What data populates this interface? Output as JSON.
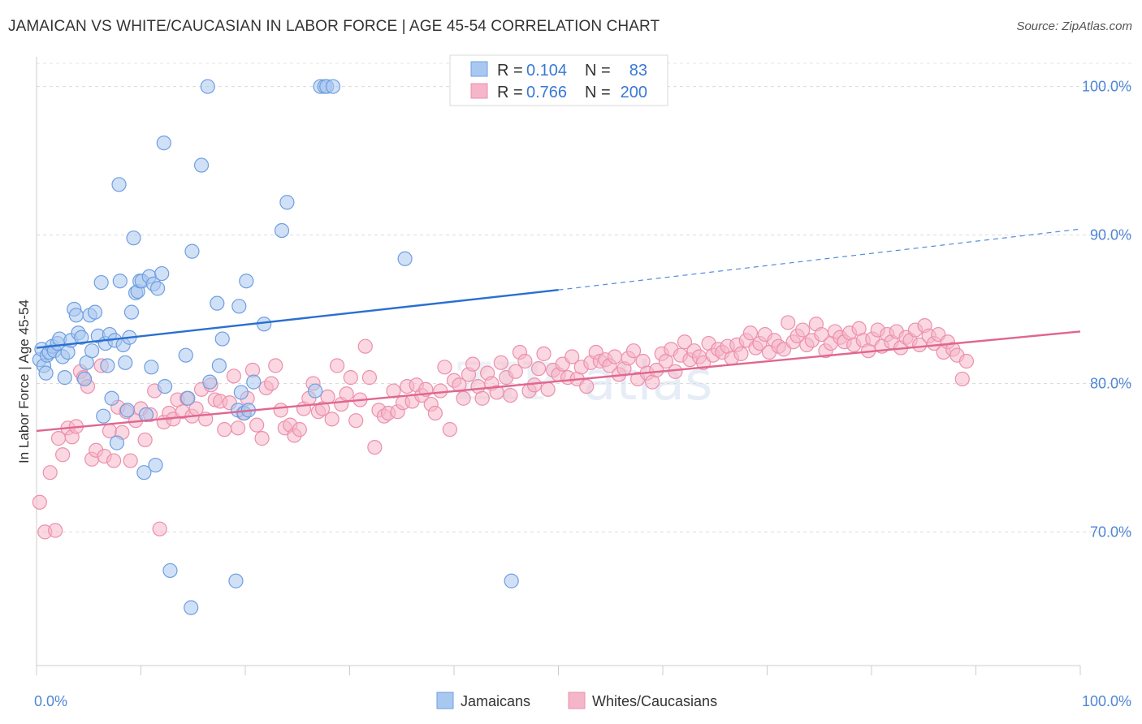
{
  "header": {
    "title": "JAMAICAN VS WHITE/CAUCASIAN IN LABOR FORCE | AGE 45-54 CORRELATION CHART",
    "source": "Source: ZipAtlas.com"
  },
  "colors": {
    "blue_fill": "#a9c8f0",
    "blue_stroke": "#6f9ee0",
    "blue_line": "#2a6fd0",
    "pink_fill": "#f5b6c9",
    "pink_stroke": "#ec8fae",
    "pink_line": "#e0668f",
    "tick_label": "#4f86d4"
  },
  "chart_data": {
    "type": "scatter",
    "title": "JAMAICAN VS WHITE/CAUCASIAN IN LABOR FORCE | AGE 45-54 CORRELATION CHART",
    "xlabel": "",
    "ylabel": "In Labor Force | Age 45-54",
    "xlim": [
      0,
      100
    ],
    "ylim": [
      61,
      102
    ],
    "x_tick_labels": [
      "0.0%",
      "100.0%"
    ],
    "y_ticks": [
      70,
      80,
      90,
      100
    ],
    "y_tick_labels": [
      "70.0%",
      "80.0%",
      "90.0%",
      "100.0%"
    ],
    "legend_position": "top-center",
    "watermark": "ZIPatlas",
    "legend": {
      "rows": [
        {
          "r_label": "R =",
          "r_value": "0.104",
          "n_label": "N =",
          "n_value": "83"
        },
        {
          "r_label": "R =",
          "r_value": "0.766",
          "n_label": "N =",
          "n_value": "200"
        }
      ]
    },
    "series": [
      {
        "name": "Jamaicans",
        "n": 83,
        "r": 0.104,
        "trend": {
          "x0": 0,
          "y0": 82.4,
          "x1": 50,
          "y1": 86.3,
          "dashed_to_x": 100,
          "dashed_to_y": 90.4
        },
        "points": [
          [
            0.3,
            81.6
          ],
          [
            0.5,
            82.3
          ],
          [
            0.7,
            81.2
          ],
          [
            0.9,
            80.7
          ],
          [
            1.0,
            81.9
          ],
          [
            1.2,
            82.1
          ],
          [
            1.5,
            82.5
          ],
          [
            1.7,
            82.2
          ],
          [
            2.0,
            82.7
          ],
          [
            2.2,
            83.0
          ],
          [
            2.5,
            81.8
          ],
          [
            2.7,
            80.4
          ],
          [
            3.0,
            82.1
          ],
          [
            3.3,
            82.9
          ],
          [
            3.6,
            85.0
          ],
          [
            3.8,
            84.6
          ],
          [
            4.0,
            83.4
          ],
          [
            4.3,
            83.1
          ],
          [
            4.6,
            80.3
          ],
          [
            4.8,
            81.4
          ],
          [
            5.1,
            84.6
          ],
          [
            5.3,
            82.2
          ],
          [
            5.6,
            84.8
          ],
          [
            5.9,
            83.2
          ],
          [
            6.2,
            86.8
          ],
          [
            6.4,
            77.8
          ],
          [
            6.6,
            82.7
          ],
          [
            6.8,
            81.2
          ],
          [
            7.0,
            83.3
          ],
          [
            7.2,
            79.0
          ],
          [
            7.5,
            82.9
          ],
          [
            7.7,
            76.0
          ],
          [
            7.9,
            93.4
          ],
          [
            8.0,
            86.9
          ],
          [
            8.3,
            82.6
          ],
          [
            8.5,
            81.4
          ],
          [
            8.7,
            78.2
          ],
          [
            8.9,
            83.1
          ],
          [
            9.1,
            84.8
          ],
          [
            9.3,
            89.8
          ],
          [
            9.5,
            86.1
          ],
          [
            9.7,
            86.2
          ],
          [
            9.9,
            86.9
          ],
          [
            10.1,
            86.9
          ],
          [
            10.3,
            74.0
          ],
          [
            10.5,
            77.9
          ],
          [
            10.8,
            87.2
          ],
          [
            11.0,
            81.1
          ],
          [
            11.2,
            86.7
          ],
          [
            11.4,
            74.5
          ],
          [
            11.6,
            86.4
          ],
          [
            12.0,
            87.4
          ],
          [
            12.2,
            96.2
          ],
          [
            12.3,
            79.8
          ],
          [
            12.8,
            67.4
          ],
          [
            14.3,
            81.9
          ],
          [
            14.5,
            79.0
          ],
          [
            14.8,
            64.9
          ],
          [
            14.9,
            88.9
          ],
          [
            15.8,
            94.7
          ],
          [
            16.4,
            100.0
          ],
          [
            16.6,
            80.1
          ],
          [
            17.3,
            85.4
          ],
          [
            17.5,
            81.2
          ],
          [
            17.8,
            83.0
          ],
          [
            19.1,
            66.7
          ],
          [
            19.3,
            78.2
          ],
          [
            19.4,
            85.2
          ],
          [
            19.6,
            79.4
          ],
          [
            19.9,
            78.0
          ],
          [
            20.1,
            86.9
          ],
          [
            20.3,
            78.2
          ],
          [
            20.8,
            80.1
          ],
          [
            21.8,
            84.0
          ],
          [
            23.5,
            90.3
          ],
          [
            24.0,
            92.2
          ],
          [
            26.7,
            79.5
          ],
          [
            27.2,
            100.0
          ],
          [
            27.6,
            100.0
          ],
          [
            27.8,
            100.0
          ],
          [
            28.4,
            100.0
          ],
          [
            35.3,
            88.4
          ],
          [
            45.5,
            66.7
          ]
        ]
      },
      {
        "name": "Whites/Caucasians",
        "n": 200,
        "r": 0.766,
        "trend": {
          "x0": 0,
          "y0": 76.8,
          "x1": 100,
          "y1": 83.5
        },
        "points": [
          [
            0.3,
            72.0
          ],
          [
            0.8,
            70.0
          ],
          [
            1.3,
            74.0
          ],
          [
            1.8,
            70.1
          ],
          [
            2.1,
            76.3
          ],
          [
            2.5,
            75.2
          ],
          [
            3.0,
            77.0
          ],
          [
            3.4,
            76.4
          ],
          [
            3.8,
            77.1
          ],
          [
            4.2,
            80.8
          ],
          [
            4.5,
            80.4
          ],
          [
            4.9,
            79.8
          ],
          [
            5.3,
            74.9
          ],
          [
            5.7,
            75.5
          ],
          [
            6.2,
            81.2
          ],
          [
            6.5,
            75.1
          ],
          [
            7.0,
            76.8
          ],
          [
            7.4,
            74.8
          ],
          [
            7.8,
            78.4
          ],
          [
            8.2,
            76.7
          ],
          [
            8.6,
            78.1
          ],
          [
            9.0,
            74.8
          ],
          [
            9.5,
            77.5
          ],
          [
            10.0,
            78.3
          ],
          [
            10.4,
            76.2
          ],
          [
            10.9,
            77.9
          ],
          [
            11.3,
            79.5
          ],
          [
            11.8,
            70.2
          ],
          [
            12.2,
            77.4
          ],
          [
            12.7,
            78.0
          ],
          [
            13.1,
            77.6
          ],
          [
            13.5,
            78.9
          ],
          [
            14.0,
            78.1
          ],
          [
            14.4,
            79.0
          ],
          [
            14.9,
            77.8
          ],
          [
            15.3,
            78.3
          ],
          [
            15.8,
            79.6
          ],
          [
            16.2,
            77.6
          ],
          [
            16.7,
            79.9
          ],
          [
            17.1,
            78.9
          ],
          [
            17.6,
            78.8
          ],
          [
            18.0,
            76.9
          ],
          [
            18.5,
            78.7
          ],
          [
            18.9,
            80.5
          ],
          [
            19.3,
            77.0
          ],
          [
            19.8,
            78.0
          ],
          [
            20.2,
            79.0
          ],
          [
            20.7,
            80.9
          ],
          [
            21.1,
            77.2
          ],
          [
            21.6,
            76.3
          ],
          [
            22.0,
            79.7
          ],
          [
            22.5,
            80.0
          ],
          [
            22.9,
            81.2
          ],
          [
            23.4,
            78.2
          ],
          [
            23.8,
            77.0
          ],
          [
            24.3,
            77.2
          ],
          [
            24.7,
            76.5
          ],
          [
            25.2,
            76.9
          ],
          [
            25.6,
            78.3
          ],
          [
            26.1,
            79.0
          ],
          [
            26.5,
            80.0
          ],
          [
            27.0,
            78.1
          ],
          [
            27.4,
            78.3
          ],
          [
            27.9,
            79.1
          ],
          [
            28.3,
            77.6
          ],
          [
            28.8,
            81.2
          ],
          [
            29.2,
            78.6
          ],
          [
            29.7,
            79.3
          ],
          [
            30.1,
            80.4
          ],
          [
            30.6,
            77.5
          ],
          [
            31.0,
            78.9
          ],
          [
            31.5,
            82.5
          ],
          [
            31.9,
            80.4
          ],
          [
            32.4,
            75.7
          ],
          [
            32.8,
            78.2
          ],
          [
            33.3,
            77.8
          ],
          [
            33.7,
            78.0
          ],
          [
            34.2,
            79.5
          ],
          [
            34.6,
            78.1
          ],
          [
            35.1,
            78.7
          ],
          [
            35.5,
            79.8
          ],
          [
            36.0,
            78.8
          ],
          [
            36.4,
            79.9
          ],
          [
            36.9,
            79.2
          ],
          [
            37.3,
            79.6
          ],
          [
            37.8,
            78.6
          ],
          [
            38.2,
            78.0
          ],
          [
            38.7,
            79.5
          ],
          [
            39.1,
            81.1
          ],
          [
            39.6,
            76.9
          ],
          [
            40.0,
            80.2
          ],
          [
            40.5,
            79.9
          ],
          [
            40.9,
            79.0
          ],
          [
            41.4,
            80.6
          ],
          [
            41.8,
            81.3
          ],
          [
            42.3,
            79.8
          ],
          [
            42.7,
            79.0
          ],
          [
            43.2,
            80.7
          ],
          [
            43.6,
            80.0
          ],
          [
            44.1,
            79.4
          ],
          [
            44.5,
            81.4
          ],
          [
            45.0,
            80.4
          ],
          [
            45.4,
            79.2
          ],
          [
            45.9,
            80.8
          ],
          [
            46.3,
            82.1
          ],
          [
            46.8,
            81.5
          ],
          [
            47.2,
            79.5
          ],
          [
            47.7,
            79.9
          ],
          [
            48.1,
            81.0
          ],
          [
            48.6,
            82.0
          ],
          [
            49.0,
            79.6
          ],
          [
            49.5,
            80.9
          ],
          [
            50.0,
            80.6
          ],
          [
            50.4,
            81.3
          ],
          [
            50.9,
            80.4
          ],
          [
            51.3,
            81.8
          ],
          [
            51.8,
            80.3
          ],
          [
            52.2,
            81.1
          ],
          [
            52.7,
            79.8
          ],
          [
            53.1,
            81.4
          ],
          [
            53.6,
            82.1
          ],
          [
            54.0,
            81.5
          ],
          [
            54.5,
            81.6
          ],
          [
            54.9,
            81.2
          ],
          [
            55.4,
            81.8
          ],
          [
            55.8,
            80.6
          ],
          [
            56.3,
            81.0
          ],
          [
            56.7,
            81.7
          ],
          [
            57.2,
            82.2
          ],
          [
            57.6,
            80.3
          ],
          [
            58.1,
            81.5
          ],
          [
            58.5,
            80.7
          ],
          [
            59.0,
            80.1
          ],
          [
            59.4,
            80.9
          ],
          [
            59.9,
            82.0
          ],
          [
            60.3,
            81.5
          ],
          [
            60.8,
            82.3
          ],
          [
            61.2,
            80.8
          ],
          [
            61.7,
            81.9
          ],
          [
            62.1,
            82.8
          ],
          [
            62.6,
            81.6
          ],
          [
            63.0,
            82.2
          ],
          [
            63.5,
            81.8
          ],
          [
            63.9,
            81.4
          ],
          [
            64.4,
            82.7
          ],
          [
            64.8,
            81.9
          ],
          [
            65.3,
            82.3
          ],
          [
            65.7,
            82.1
          ],
          [
            66.2,
            82.5
          ],
          [
            66.6,
            81.7
          ],
          [
            67.1,
            82.6
          ],
          [
            67.5,
            82.0
          ],
          [
            68.0,
            82.9
          ],
          [
            68.4,
            83.4
          ],
          [
            68.9,
            82.4
          ],
          [
            69.3,
            82.7
          ],
          [
            69.8,
            83.3
          ],
          [
            70.2,
            82.1
          ],
          [
            70.7,
            82.9
          ],
          [
            71.1,
            82.5
          ],
          [
            71.6,
            82.3
          ],
          [
            72.0,
            84.1
          ],
          [
            72.5,
            82.8
          ],
          [
            72.9,
            83.2
          ],
          [
            73.4,
            83.6
          ],
          [
            73.8,
            82.6
          ],
          [
            74.3,
            82.9
          ],
          [
            74.7,
            84.0
          ],
          [
            75.2,
            83.3
          ],
          [
            75.6,
            82.2
          ],
          [
            76.1,
            82.7
          ],
          [
            76.5,
            83.5
          ],
          [
            77.0,
            83.1
          ],
          [
            77.4,
            82.8
          ],
          [
            77.9,
            83.4
          ],
          [
            78.3,
            82.6
          ],
          [
            78.8,
            83.7
          ],
          [
            79.2,
            82.9
          ],
          [
            79.7,
            82.2
          ],
          [
            80.1,
            83.0
          ],
          [
            80.6,
            83.6
          ],
          [
            81.0,
            82.5
          ],
          [
            81.5,
            83.3
          ],
          [
            81.9,
            82.8
          ],
          [
            82.4,
            83.5
          ],
          [
            82.8,
            82.4
          ],
          [
            83.3,
            83.1
          ],
          [
            83.7,
            82.9
          ],
          [
            84.2,
            83.6
          ],
          [
            84.6,
            82.6
          ],
          [
            85.1,
            83.9
          ],
          [
            85.5,
            83.2
          ],
          [
            86.0,
            82.7
          ],
          [
            86.4,
            83.3
          ],
          [
            86.9,
            82.1
          ],
          [
            87.3,
            82.8
          ],
          [
            87.8,
            82.3
          ],
          [
            88.2,
            81.9
          ],
          [
            88.7,
            80.3
          ],
          [
            89.1,
            81.5
          ]
        ]
      }
    ],
    "bottom_legend": [
      "Jamaicans",
      "Whites/Caucasians"
    ]
  }
}
